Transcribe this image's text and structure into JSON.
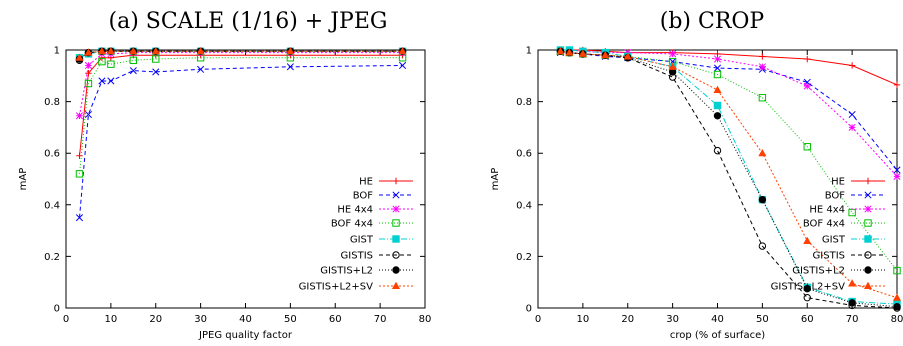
{
  "chart_data": [
    {
      "type": "line",
      "title": "(a) SCALE (1/16) + JPEG",
      "xlabel": "JPEG quality factor",
      "ylabel": "mAP",
      "xlim": [
        0,
        80
      ],
      "ylim": [
        0,
        1
      ],
      "xticks": [
        "0",
        "10",
        "20",
        "30",
        "40",
        "50",
        "60",
        "70",
        "80"
      ],
      "yticks": [
        "0",
        "0.2",
        "0.4",
        "0.6",
        "0.8",
        "1"
      ],
      "legend_position": "bottom-right",
      "x": [
        3,
        5,
        8,
        10,
        15,
        20,
        30,
        50,
        75
      ],
      "series": [
        {
          "name": "HE",
          "color": "#ff0000",
          "marker": "plus",
          "dash": "",
          "values": [
            0.59,
            0.91,
            0.97,
            0.97,
            0.98,
            0.98,
            0.98,
            0.98,
            0.98
          ]
        },
        {
          "name": "BOF",
          "color": "#0000ff",
          "marker": "x",
          "dash": "4,3",
          "values": [
            0.35,
            0.75,
            0.88,
            0.88,
            0.92,
            0.915,
            0.925,
            0.935,
            0.94
          ]
        },
        {
          "name": "HE 4x4",
          "color": "#ff00ff",
          "marker": "star",
          "dash": "2,2",
          "values": [
            0.745,
            0.94,
            0.985,
            0.985,
            0.99,
            0.99,
            0.99,
            0.99,
            0.99
          ]
        },
        {
          "name": "BOF 4x4",
          "color": "#00c000",
          "marker": "square",
          "dash": "1,2",
          "values": [
            0.52,
            0.87,
            0.955,
            0.945,
            0.96,
            0.965,
            0.97,
            0.97,
            0.97
          ]
        },
        {
          "name": "GIST",
          "color": "#00d0d0",
          "marker": "filledsquare",
          "dash": "6,2,1,2",
          "values": [
            0.97,
            0.985,
            0.995,
            0.995,
            0.995,
            0.995,
            0.995,
            0.995,
            0.995
          ]
        },
        {
          "name": "GISTIS",
          "color": "#000000",
          "marker": "circle",
          "dash": "4,3",
          "values": [
            0.96,
            0.99,
            0.995,
            0.995,
            0.995,
            0.995,
            0.995,
            0.995,
            0.995
          ]
        },
        {
          "name": "GISTIS+L2",
          "color": "#000000",
          "marker": "filledcircle",
          "dash": "1,2",
          "values": [
            0.965,
            0.99,
            0.995,
            0.995,
            0.995,
            0.995,
            0.995,
            0.995,
            0.995
          ]
        },
        {
          "name": "GISTIS+L2+SV",
          "color": "#ff4000",
          "marker": "triangle",
          "dash": "2,2",
          "values": [
            0.97,
            0.99,
            0.995,
            0.995,
            0.995,
            0.995,
            0.995,
            0.995,
            0.995
          ]
        }
      ]
    },
    {
      "type": "line",
      "title": "(b) CROP",
      "xlabel": "crop (% of surface)",
      "ylabel": "mAP",
      "xlim": [
        0,
        80
      ],
      "ylim": [
        0,
        1
      ],
      "xticks": [
        "0",
        "10",
        "20",
        "30",
        "40",
        "50",
        "60",
        "70",
        "80"
      ],
      "yticks": [
        "0",
        "0.2",
        "0.4",
        "0.6",
        "0.8",
        "1"
      ],
      "legend_position": "bottom-left",
      "x": [
        5,
        7,
        10,
        15,
        20,
        30,
        40,
        50,
        60,
        70,
        80
      ],
      "series": [
        {
          "name": "HE",
          "color": "#ff0000",
          "marker": "plus",
          "dash": "",
          "values": [
            1.0,
            1.0,
            1.0,
            0.995,
            0.99,
            0.99,
            0.985,
            0.975,
            0.965,
            0.94,
            0.865
          ]
        },
        {
          "name": "BOF",
          "color": "#0000ff",
          "marker": "x",
          "dash": "4,3",
          "values": [
            0.99,
            0.99,
            0.985,
            0.975,
            0.97,
            0.955,
            0.93,
            0.925,
            0.875,
            0.75,
            0.535
          ]
        },
        {
          "name": "HE 4x4",
          "color": "#ff00ff",
          "marker": "star",
          "dash": "2,2",
          "values": [
            1.0,
            1.0,
            0.995,
            0.99,
            0.99,
            0.985,
            0.965,
            0.935,
            0.86,
            0.7,
            0.51
          ]
        },
        {
          "name": "BOF 4x4",
          "color": "#00c000",
          "marker": "square",
          "dash": "1,2",
          "values": [
            0.995,
            0.99,
            0.985,
            0.98,
            0.975,
            0.955,
            0.905,
            0.815,
            0.625,
            0.37,
            0.145
          ]
        },
        {
          "name": "GIST",
          "color": "#00d0d0",
          "marker": "filledsquare",
          "dash": "6,2,1,2",
          "values": [
            1.0,
            1.0,
            0.995,
            0.99,
            0.975,
            0.935,
            0.785,
            0.42,
            0.08,
            0.025,
            0.015
          ]
        },
        {
          "name": "GISTIS",
          "color": "#000000",
          "marker": "circle",
          "dash": "4,3",
          "values": [
            0.995,
            0.99,
            0.985,
            0.98,
            0.97,
            0.895,
            0.61,
            0.24,
            0.04,
            0.01,
            0.0
          ]
        },
        {
          "name": "GISTIS+L2",
          "color": "#000000",
          "marker": "filledcircle",
          "dash": "1,2",
          "values": [
            0.995,
            0.99,
            0.985,
            0.98,
            0.97,
            0.915,
            0.745,
            0.42,
            0.075,
            0.02,
            0.005
          ]
        },
        {
          "name": "GISTIS+L2+SV",
          "color": "#ff4000",
          "marker": "triangle",
          "dash": "2,2",
          "values": [
            0.995,
            0.99,
            0.985,
            0.98,
            0.975,
            0.935,
            0.845,
            0.6,
            0.26,
            0.095,
            0.04
          ]
        }
      ]
    }
  ]
}
